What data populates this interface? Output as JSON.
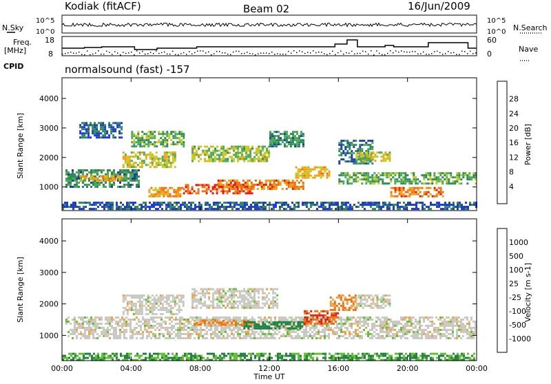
{
  "header": {
    "station": "Kodiak (fitACF)",
    "beam": "Beam 02",
    "date": "16/Jun/2009"
  },
  "summary": {
    "nsky_label": "N.Sky",
    "nsearch_label": "N.Search",
    "freq_label_line1": "Freq.",
    "freq_label_line2": "[MHz]",
    "nave_label": "Nave",
    "cpid_label": "CPID",
    "cpid_value": "normalsound (fast) -157",
    "noise_left_ticks": [
      "10^5",
      "10^0"
    ],
    "noise_right_ticks": [
      "10^5",
      "10^0"
    ],
    "freq_ticks": [
      "18",
      "8"
    ],
    "nave_ticks": [
      "60",
      "0"
    ]
  },
  "chart_data": [
    {
      "type": "heatmap",
      "name": "power",
      "ylabel": "Slant Range [km]",
      "xlabel": "Time UT",
      "xlim_hours": [
        0,
        24
      ],
      "ylim": [
        200,
        4700
      ],
      "x_ticks": [
        "00:00",
        "04:00",
        "08:00",
        "12:00",
        "16:00",
        "20:00",
        "00:00"
      ],
      "y_ticks": [
        1000,
        2000,
        3000,
        4000
      ],
      "colorbar": {
        "label": "Power [dB]",
        "ticks": [
          "4",
          "8",
          "12",
          "16",
          "20",
          "24",
          "28"
        ],
        "colors": [
          "#1e32ff",
          "#1a3fa8",
          "#2c8a5a",
          "#4caa55",
          "#c8c820",
          "#f0a010",
          "#f07010",
          "#e02000",
          "#ff0000"
        ]
      },
      "bands": [
        {
          "t0": 0.2,
          "t1": 4.5,
          "r0": 1000,
          "r1": 1600,
          "level": 12
        },
        {
          "t0": 1.0,
          "t1": 3.5,
          "r0": 1200,
          "r1": 1400,
          "level": 20
        },
        {
          "t0": 3.5,
          "t1": 6.5,
          "r0": 1700,
          "r1": 2200,
          "level": 18
        },
        {
          "t0": 4.0,
          "t1": 7.0,
          "r0": 2400,
          "r1": 2900,
          "level": 14
        },
        {
          "t0": 5.0,
          "t1": 7.0,
          "r0": 700,
          "r1": 1000,
          "level": 22
        },
        {
          "t0": 7.0,
          "t1": 11.0,
          "r0": 800,
          "r1": 1100,
          "level": 27
        },
        {
          "t0": 9.0,
          "t1": 14.0,
          "r0": 950,
          "r1": 1250,
          "level": 24
        },
        {
          "t0": 7.5,
          "t1": 12.0,
          "r0": 1900,
          "r1": 2400,
          "level": 16
        },
        {
          "t0": 12.0,
          "t1": 14.0,
          "r0": 2400,
          "r1": 2900,
          "level": 12
        },
        {
          "t0": 13.5,
          "t1": 15.5,
          "r0": 1300,
          "r1": 1700,
          "level": 20
        },
        {
          "t0": 16.0,
          "t1": 18.0,
          "r0": 1800,
          "r1": 2600,
          "level": 10
        },
        {
          "t0": 17.0,
          "t1": 19.0,
          "r0": 1900,
          "r1": 2200,
          "level": 18
        },
        {
          "t0": 16.0,
          "t1": 24.0,
          "r0": 1100,
          "r1": 1500,
          "level": 14
        },
        {
          "t0": 19.0,
          "t1": 22.0,
          "r0": 700,
          "r1": 1000,
          "level": 24
        },
        {
          "t0": 0.0,
          "t1": 24.0,
          "r0": 250,
          "r1": 500,
          "level": 8
        },
        {
          "t0": 1.0,
          "t1": 3.5,
          "r0": 2700,
          "r1": 3200,
          "level": 8
        }
      ]
    },
    {
      "type": "heatmap",
      "name": "velocity",
      "ylabel": "Slant Range [km]",
      "xlabel": "Time UT",
      "xlim_hours": [
        0,
        24
      ],
      "ylim": [
        200,
        4700
      ],
      "x_ticks": [
        "00:00",
        "04:00",
        "08:00",
        "12:00",
        "16:00",
        "20:00",
        "00:00"
      ],
      "y_ticks": [
        1000,
        2000,
        3000,
        4000
      ],
      "colorbar": {
        "label": "Velocity [m s-1]",
        "ticks": [
          "1000",
          "500",
          "100",
          "25",
          "-25",
          "-100",
          "-500",
          "-1000"
        ],
        "colors": [
          "#1a2aa8",
          "#2a5ab8",
          "#208040",
          "#60c030",
          "#c8c8c0",
          "#f0a040",
          "#f07010",
          "#e02000",
          "#ff0000"
        ]
      },
      "bands": [
        {
          "t0": 0.2,
          "t1": 24.0,
          "r0": 900,
          "r1": 1600,
          "level": 0
        },
        {
          "t0": 3.5,
          "t1": 7.0,
          "r0": 1700,
          "r1": 2300,
          "level": 0
        },
        {
          "t0": 7.5,
          "t1": 12.5,
          "r0": 1900,
          "r1": 2500,
          "level": 0
        },
        {
          "t0": 7.5,
          "t1": 11.0,
          "r0": 1350,
          "r1": 1500,
          "level": -100
        },
        {
          "t0": 10.5,
          "t1": 14.0,
          "r0": 1250,
          "r1": 1450,
          "level": 100
        },
        {
          "t0": 14.0,
          "t1": 16.0,
          "r0": 1350,
          "r1": 1800,
          "level": -300
        },
        {
          "t0": 15.5,
          "t1": 17.0,
          "r0": 1800,
          "r1": 2300,
          "level": -100
        },
        {
          "t0": 17.0,
          "t1": 19.0,
          "r0": 1900,
          "r1": 2300,
          "level": 0
        },
        {
          "t0": 0.0,
          "t1": 24.0,
          "r0": 250,
          "r1": 450,
          "level": 60
        }
      ]
    }
  ]
}
